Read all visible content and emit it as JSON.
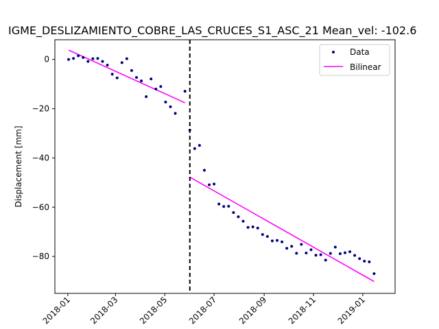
{
  "chart_data": {
    "type": "scatter",
    "title": "IGME_DESLIZAMIENTO_COBRE_LAS_CRUCES_S1_ASC_21    Mean_vel: -102.6",
    "xlabel": "",
    "ylabel": "Displacement [mm]",
    "xlim": [
      "2017-12-16",
      "2019-02-10"
    ],
    "ylim": [
      -95,
      8
    ],
    "x_ticks": [
      "2018-01",
      "2018-03",
      "2018-05",
      "2018-07",
      "2018-09",
      "2018-11",
      "2019-01"
    ],
    "y_ticks": [
      0,
      -20,
      -40,
      -60,
      -80
    ],
    "grid": false,
    "legend_position": "top-right",
    "breakpoint": "2018-06-01",
    "series": [
      {
        "name": "Data",
        "kind": "points",
        "color": "#00007f",
        "points": [
          [
            "2018-01-02",
            0.0
          ],
          [
            "2018-01-08",
            0.4
          ],
          [
            "2018-01-14",
            1.5
          ],
          [
            "2018-01-20",
            0.8
          ],
          [
            "2018-01-26",
            -0.8
          ],
          [
            "2018-02-01",
            0.3
          ],
          [
            "2018-02-07",
            0.4
          ],
          [
            "2018-02-13",
            -0.8
          ],
          [
            "2018-02-19",
            -2.3
          ],
          [
            "2018-02-25",
            -6.0
          ],
          [
            "2018-03-03",
            -7.5
          ],
          [
            "2018-03-09",
            -1.3
          ],
          [
            "2018-03-15",
            0.3
          ],
          [
            "2018-03-21",
            -4.5
          ],
          [
            "2018-03-27",
            -7.3
          ],
          [
            "2018-04-02",
            -8.7
          ],
          [
            "2018-04-08",
            -15.1
          ],
          [
            "2018-04-14",
            -7.9
          ],
          [
            "2018-04-20",
            -12.0
          ],
          [
            "2018-04-26",
            -11.0
          ],
          [
            "2018-05-02",
            -17.3
          ],
          [
            "2018-05-08",
            -19.2
          ],
          [
            "2018-05-14",
            -21.9
          ],
          [
            "2018-05-26",
            -12.9
          ],
          [
            "2018-06-01",
            -28.7
          ],
          [
            "2018-06-07",
            -36.2
          ],
          [
            "2018-06-13",
            -34.9
          ],
          [
            "2018-06-19",
            -45.0
          ],
          [
            "2018-06-25",
            -50.9
          ],
          [
            "2018-07-01",
            -50.6
          ],
          [
            "2018-07-07",
            -58.7
          ],
          [
            "2018-07-13",
            -59.7
          ],
          [
            "2018-07-19",
            -59.6
          ],
          [
            "2018-07-25",
            -62.2
          ],
          [
            "2018-07-31",
            -63.9
          ],
          [
            "2018-08-06",
            -65.7
          ],
          [
            "2018-08-12",
            -68.2
          ],
          [
            "2018-08-18",
            -68.0
          ],
          [
            "2018-08-24",
            -68.5
          ],
          [
            "2018-08-30",
            -71.1
          ],
          [
            "2018-09-05",
            -71.9
          ],
          [
            "2018-09-11",
            -73.7
          ],
          [
            "2018-09-17",
            -73.5
          ],
          [
            "2018-09-23",
            -74.1
          ],
          [
            "2018-09-29",
            -76.7
          ],
          [
            "2018-10-05",
            -75.9
          ],
          [
            "2018-10-11",
            -78.7
          ],
          [
            "2018-10-17",
            -75.1
          ],
          [
            "2018-10-23",
            -78.6
          ],
          [
            "2018-10-29",
            -77.3
          ],
          [
            "2018-11-04",
            -79.5
          ],
          [
            "2018-11-10",
            -79.3
          ],
          [
            "2018-11-16",
            -81.5
          ],
          [
            "2018-11-22",
            -78.8
          ],
          [
            "2018-11-28",
            -76.2
          ],
          [
            "2018-12-04",
            -78.9
          ],
          [
            "2018-12-10",
            -78.5
          ],
          [
            "2018-12-16",
            -78.1
          ],
          [
            "2018-12-22",
            -79.6
          ],
          [
            "2018-12-28",
            -80.9
          ],
          [
            "2019-01-03",
            -81.9
          ],
          [
            "2019-01-09",
            -82.2
          ],
          [
            "2019-01-15",
            -87.0
          ]
        ]
      },
      {
        "name": "Bilinear",
        "kind": "line",
        "color": "#ff00ff",
        "segments": [
          [
            [
              "2018-01-02",
              3.8
            ],
            [
              "2018-05-26",
              -17.6
            ]
          ],
          [
            [
              "2018-06-01",
              -47.8
            ],
            [
              "2019-01-15",
              -90.2
            ]
          ]
        ]
      }
    ]
  }
}
